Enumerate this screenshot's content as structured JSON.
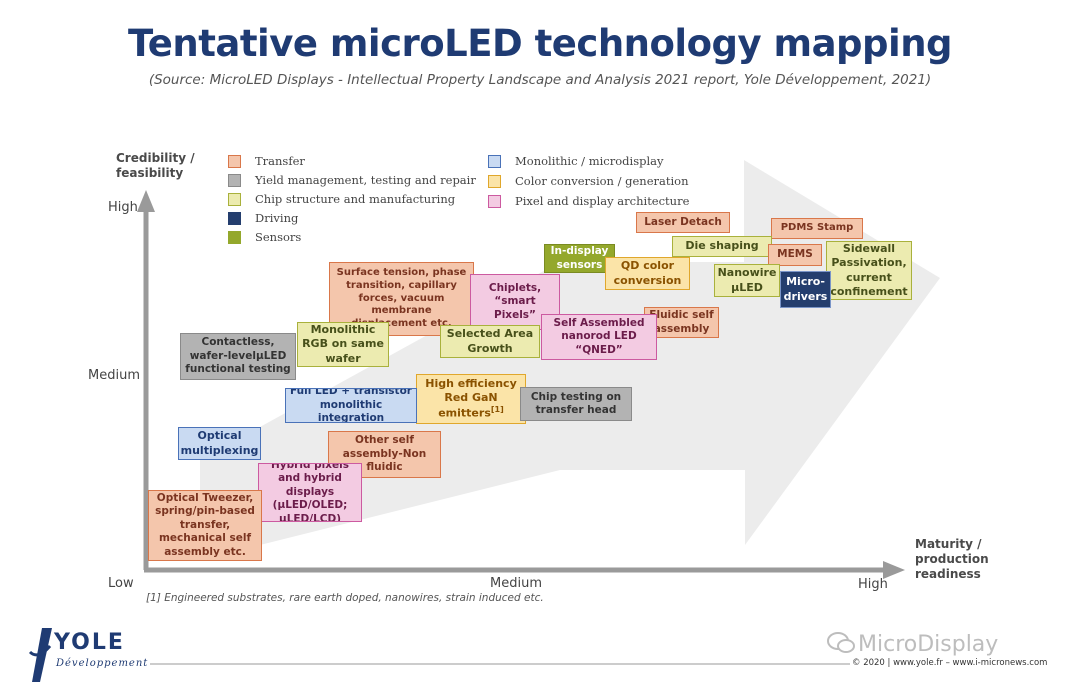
{
  "title": "Tentative microLED technology mapping",
  "subtitle": "(Source: MicroLED Displays - Intellectual Property Landscape and Analysis 2021 report, Yole Développement, 2021)",
  "y_axis": {
    "title_line1": "Credibility /",
    "title_line2": "feasibility",
    "ticks": [
      "High",
      "Medium",
      "Low"
    ]
  },
  "x_axis": {
    "title_line1": "Maturity /",
    "title_line2": "production",
    "title_line3": "readiness",
    "ticks": [
      "Medium",
      "High"
    ]
  },
  "legend": [
    {
      "label": "Transfer",
      "color": "#f4c6ac",
      "border": "#d9774a"
    },
    {
      "label": "Yield management, testing and repair",
      "color": "#b3b3b3",
      "border": "#8a8a8a"
    },
    {
      "label": "Chip structure and manufacturing",
      "color": "#ecebb0",
      "border": "#a9b13c"
    },
    {
      "label": "Driving",
      "color": "#243e6e",
      "border": "#243e6e"
    },
    {
      "label": "Sensors",
      "color": "#94a82c",
      "border": "#94a82c"
    },
    {
      "label": "Monolithic / microdisplay",
      "color": "#c9daf2",
      "border": "#4a72b8"
    },
    {
      "label": "Color conversion / generation",
      "color": "#fbe4a8",
      "border": "#e0a72c"
    },
    {
      "label": "Pixel and display architecture",
      "color": "#f3cbe2",
      "border": "#cc5aa0"
    }
  ],
  "boxes": {
    "laser_detach": "Laser Detach",
    "pdms_stamp": "PDMS Stamp",
    "die_shaping": "Die shaping",
    "in_display_sensors": "In-display sensors",
    "mems": "MEMS",
    "sidewall": "Sidewall Passivation, current confinement",
    "qd_color": "QD color conversion",
    "nanowire": "Nanowire µLED",
    "micro_drivers": "Micro-drivers",
    "surface_tension": "Surface tension, phase transition, capillary forces, vacuum membrane displacement etc.",
    "chiplets": "Chiplets, “smart Pixels”",
    "fluidic": "Fluidic self assembly",
    "self_assembled": "Self Assembled nanorod LED “QNED”",
    "contactless": "Contactless, wafer-levelµLED functional testing",
    "monolithic_rgb": "Monolithic RGB on same wafer",
    "selected_area": "Selected Area Growth",
    "high_efficiency": "High efficiency Red GaN emitters",
    "high_efficiency_ref": "[1]",
    "full_led": "Full LED + transistor monolithic integration",
    "chip_testing": "Chip testing on transfer head",
    "optical_multiplexing": "Optical multiplexing",
    "other_self_assembly": "Other self assembly-Non fluidic",
    "hybrid_pixels": "Hybrid pixels and hybrid displays (µLED/OLED; µLED/LCD)",
    "optical_tweezer": "Optical Tweezer, spring/pin-based transfer, mechanical self assembly etc."
  },
  "footnote": "[1] Engineered substrates, rare earth doped, nanowires, strain induced etc.",
  "logo": {
    "main": "YOLE",
    "sub": "Développement"
  },
  "watermark": "MicroDisplay",
  "copyright": "© 2020 | www.yole.fr – www.i-micronews.com"
}
